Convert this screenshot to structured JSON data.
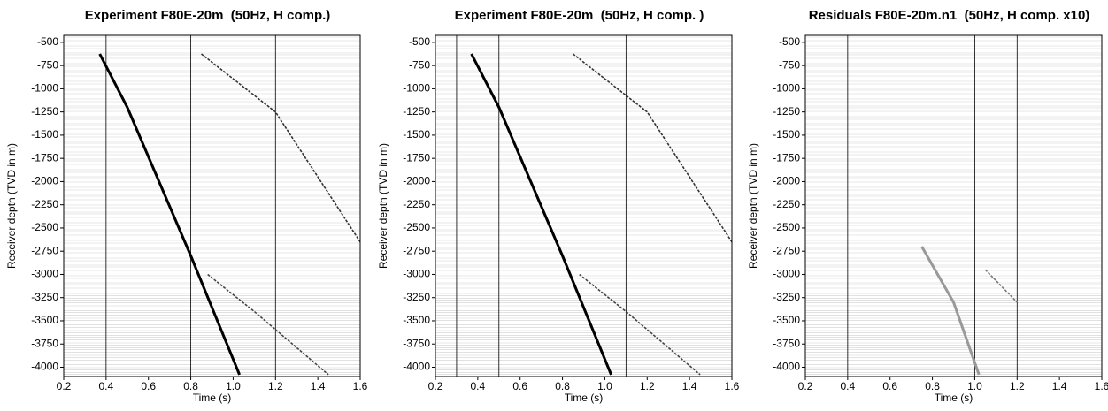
{
  "chart_data": [
    {
      "type": "line",
      "title": "Experiment F80E-20m  (50Hz, H comp.)",
      "xlabel": "Time (s)",
      "ylabel": "Receiver depth (TVD in m)",
      "xlim": [
        0.2,
        1.6
      ],
      "ylim": [
        -4100,
        -425
      ],
      "xticks": [
        0.2,
        0.4,
        0.6,
        0.8,
        {
          "value": 1,
          "label": "1.0"
        },
        1.2,
        1.4,
        1.6
      ],
      "yticks": [
        -500,
        -750,
        -1000,
        -1250,
        -1500,
        -1750,
        -2000,
        -2250,
        -2500,
        -2750,
        -3000,
        -3250,
        -3500,
        -3750,
        -4000
      ],
      "vlines": [
        0.4,
        0.8,
        1.2
      ],
      "series": [
        {
          "color": "#000000",
          "x": [
            0.37,
            0.5,
            0.8,
            1.03
          ],
          "y": [
            -625,
            -1200,
            -2800,
            -4080
          ]
        },
        {
          "color": "#333333",
          "x": [
            0.85,
            1.2,
            1.6
          ],
          "y": [
            -625,
            -1250,
            -2650
          ]
        },
        {
          "color": "#444444",
          "x": [
            0.88,
            1.1,
            1.45
          ],
          "y": [
            -3000,
            -3400,
            -4080
          ]
        }
      ]
    },
    {
      "type": "line",
      "title": "Experiment F80E-20m  (50Hz, H comp. )",
      "xlabel": "Time (s)",
      "ylabel": "Receiver depth (TVD in m)",
      "xlim": [
        0.2,
        1.6
      ],
      "ylim": [
        -4100,
        -425
      ],
      "xticks": [
        0.2,
        0.4,
        0.6,
        0.8,
        {
          "value": 1,
          "label": "1.0"
        },
        1.2,
        1.4,
        1.6
      ],
      "yticks": [
        -500,
        -750,
        -1000,
        -1250,
        -1500,
        -1750,
        -2000,
        -2250,
        -2500,
        -2750,
        -3000,
        -3250,
        -3500,
        -3750,
        -4000
      ],
      "vlines": [
        0.3,
        0.5,
        1.1
      ],
      "series": [
        {
          "color": "#000000",
          "x": [
            0.37,
            0.5,
            0.8,
            1.03
          ],
          "y": [
            -625,
            -1200,
            -2800,
            -4080
          ]
        },
        {
          "color": "#333333",
          "x": [
            0.85,
            1.2,
            1.6
          ],
          "y": [
            -625,
            -1250,
            -2650
          ]
        },
        {
          "color": "#444444",
          "x": [
            0.88,
            1.1,
            1.45
          ],
          "y": [
            -3000,
            -3400,
            -4080
          ]
        }
      ]
    },
    {
      "type": "line",
      "title": "Residuals F80E-20m.n1  (50Hz, H comp. x10)",
      "xlabel": "Time (s)",
      "ylabel": "Receiver depth (TVD in m)",
      "xlim": [
        0.2,
        1.6
      ],
      "ylim": [
        -4100,
        -425
      ],
      "xticks": [
        0.2,
        0.4,
        0.6,
        0.8,
        {
          "value": 1,
          "label": "1.0"
        },
        1.2,
        1.4,
        1.6
      ],
      "yticks": [
        -500,
        -750,
        -1000,
        -1250,
        -1500,
        -1750,
        -2000,
        -2250,
        -2500,
        -2750,
        -3000,
        -3250,
        -3500,
        -3750,
        -4000
      ],
      "vlines": [
        0.4,
        1.0,
        1.2
      ],
      "series": [
        {
          "color": "#999999",
          "x": [
            0.75,
            0.9,
            1.02
          ],
          "y": [
            -2700,
            -3300,
            -4080
          ]
        },
        {
          "color": "#777777",
          "x": [
            1.05,
            1.2
          ],
          "y": [
            -2950,
            -3300
          ]
        }
      ]
    }
  ]
}
